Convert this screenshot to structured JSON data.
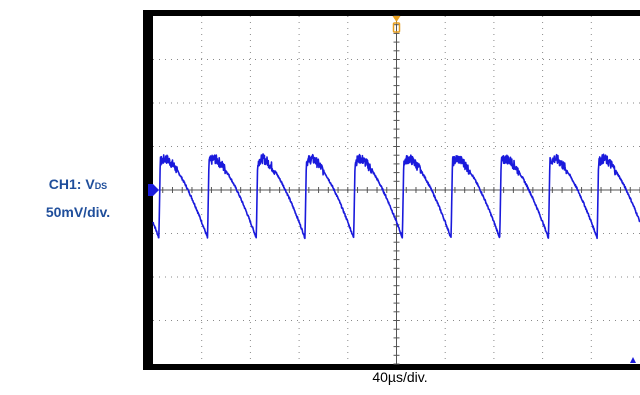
{
  "channel": {
    "name_prefix": "CH1: V",
    "name_subscript": "DS",
    "scale": "50mV/div."
  },
  "timebase": {
    "scale": "40µs/div."
  },
  "colors": {
    "trace": "#1a1adc",
    "trigger_marker": "#e8a020",
    "label": "#1f4e9b",
    "frame": "#000000",
    "grid_dots": "#8a8a8a"
  },
  "chart_data": {
    "type": "line",
    "title": "",
    "xlabel": "40µs/div.",
    "ylabel": "50mV/div.",
    "x_unit": "div",
    "y_unit": "div",
    "xlim": [
      0,
      10
    ],
    "ylim": [
      -4,
      4
    ],
    "grid": true,
    "series": [
      {
        "name": "CH1: VDS",
        "waveform": "sawtooth",
        "period_div": 1.0,
        "first_peak_x_div": 0.15,
        "peak_y_div": 0.65,
        "trough_y_div": -1.1,
        "marker_y_div": 0.0,
        "noise": true
      }
    ]
  }
}
